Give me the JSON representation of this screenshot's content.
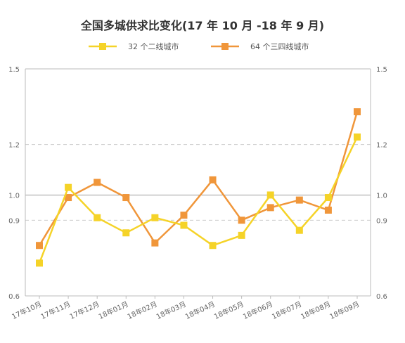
{
  "chart_data": {
    "type": "line",
    "title": "全国多城供求比变化(17 年 10 月 -18 年 9 月)",
    "categories": [
      "17年10月",
      "17年11月",
      "17年12月",
      "18年01月",
      "18年02月",
      "18年03月",
      "18年04月",
      "18年05月",
      "18年06月",
      "18年07月",
      "18年08月",
      "18年09月"
    ],
    "series": [
      {
        "name": "32 个二线城市",
        "color": "#f5d328",
        "values": [
          0.73,
          1.03,
          0.91,
          0.85,
          0.91,
          0.88,
          0.8,
          0.84,
          1.0,
          0.86,
          0.99,
          1.23
        ]
      },
      {
        "name": "64 个三四线城市",
        "color": "#f0963a",
        "values": [
          0.8,
          0.99,
          1.05,
          0.99,
          0.81,
          0.92,
          1.06,
          0.9,
          0.95,
          0.98,
          0.94,
          1.33
        ]
      }
    ],
    "yticks": [
      0.6,
      0.9,
      1.0,
      1.2,
      1.5
    ],
    "ytick_labels": [
      "0.6",
      "0.9",
      "1.0",
      "1.2",
      "1.5"
    ],
    "ylim": [
      0.6,
      1.5
    ],
    "reference_line": 1.0,
    "dashed_gridlines": [
      0.9,
      1.2
    ],
    "legend_position": "top-center",
    "secondary_y_axis": true
  }
}
